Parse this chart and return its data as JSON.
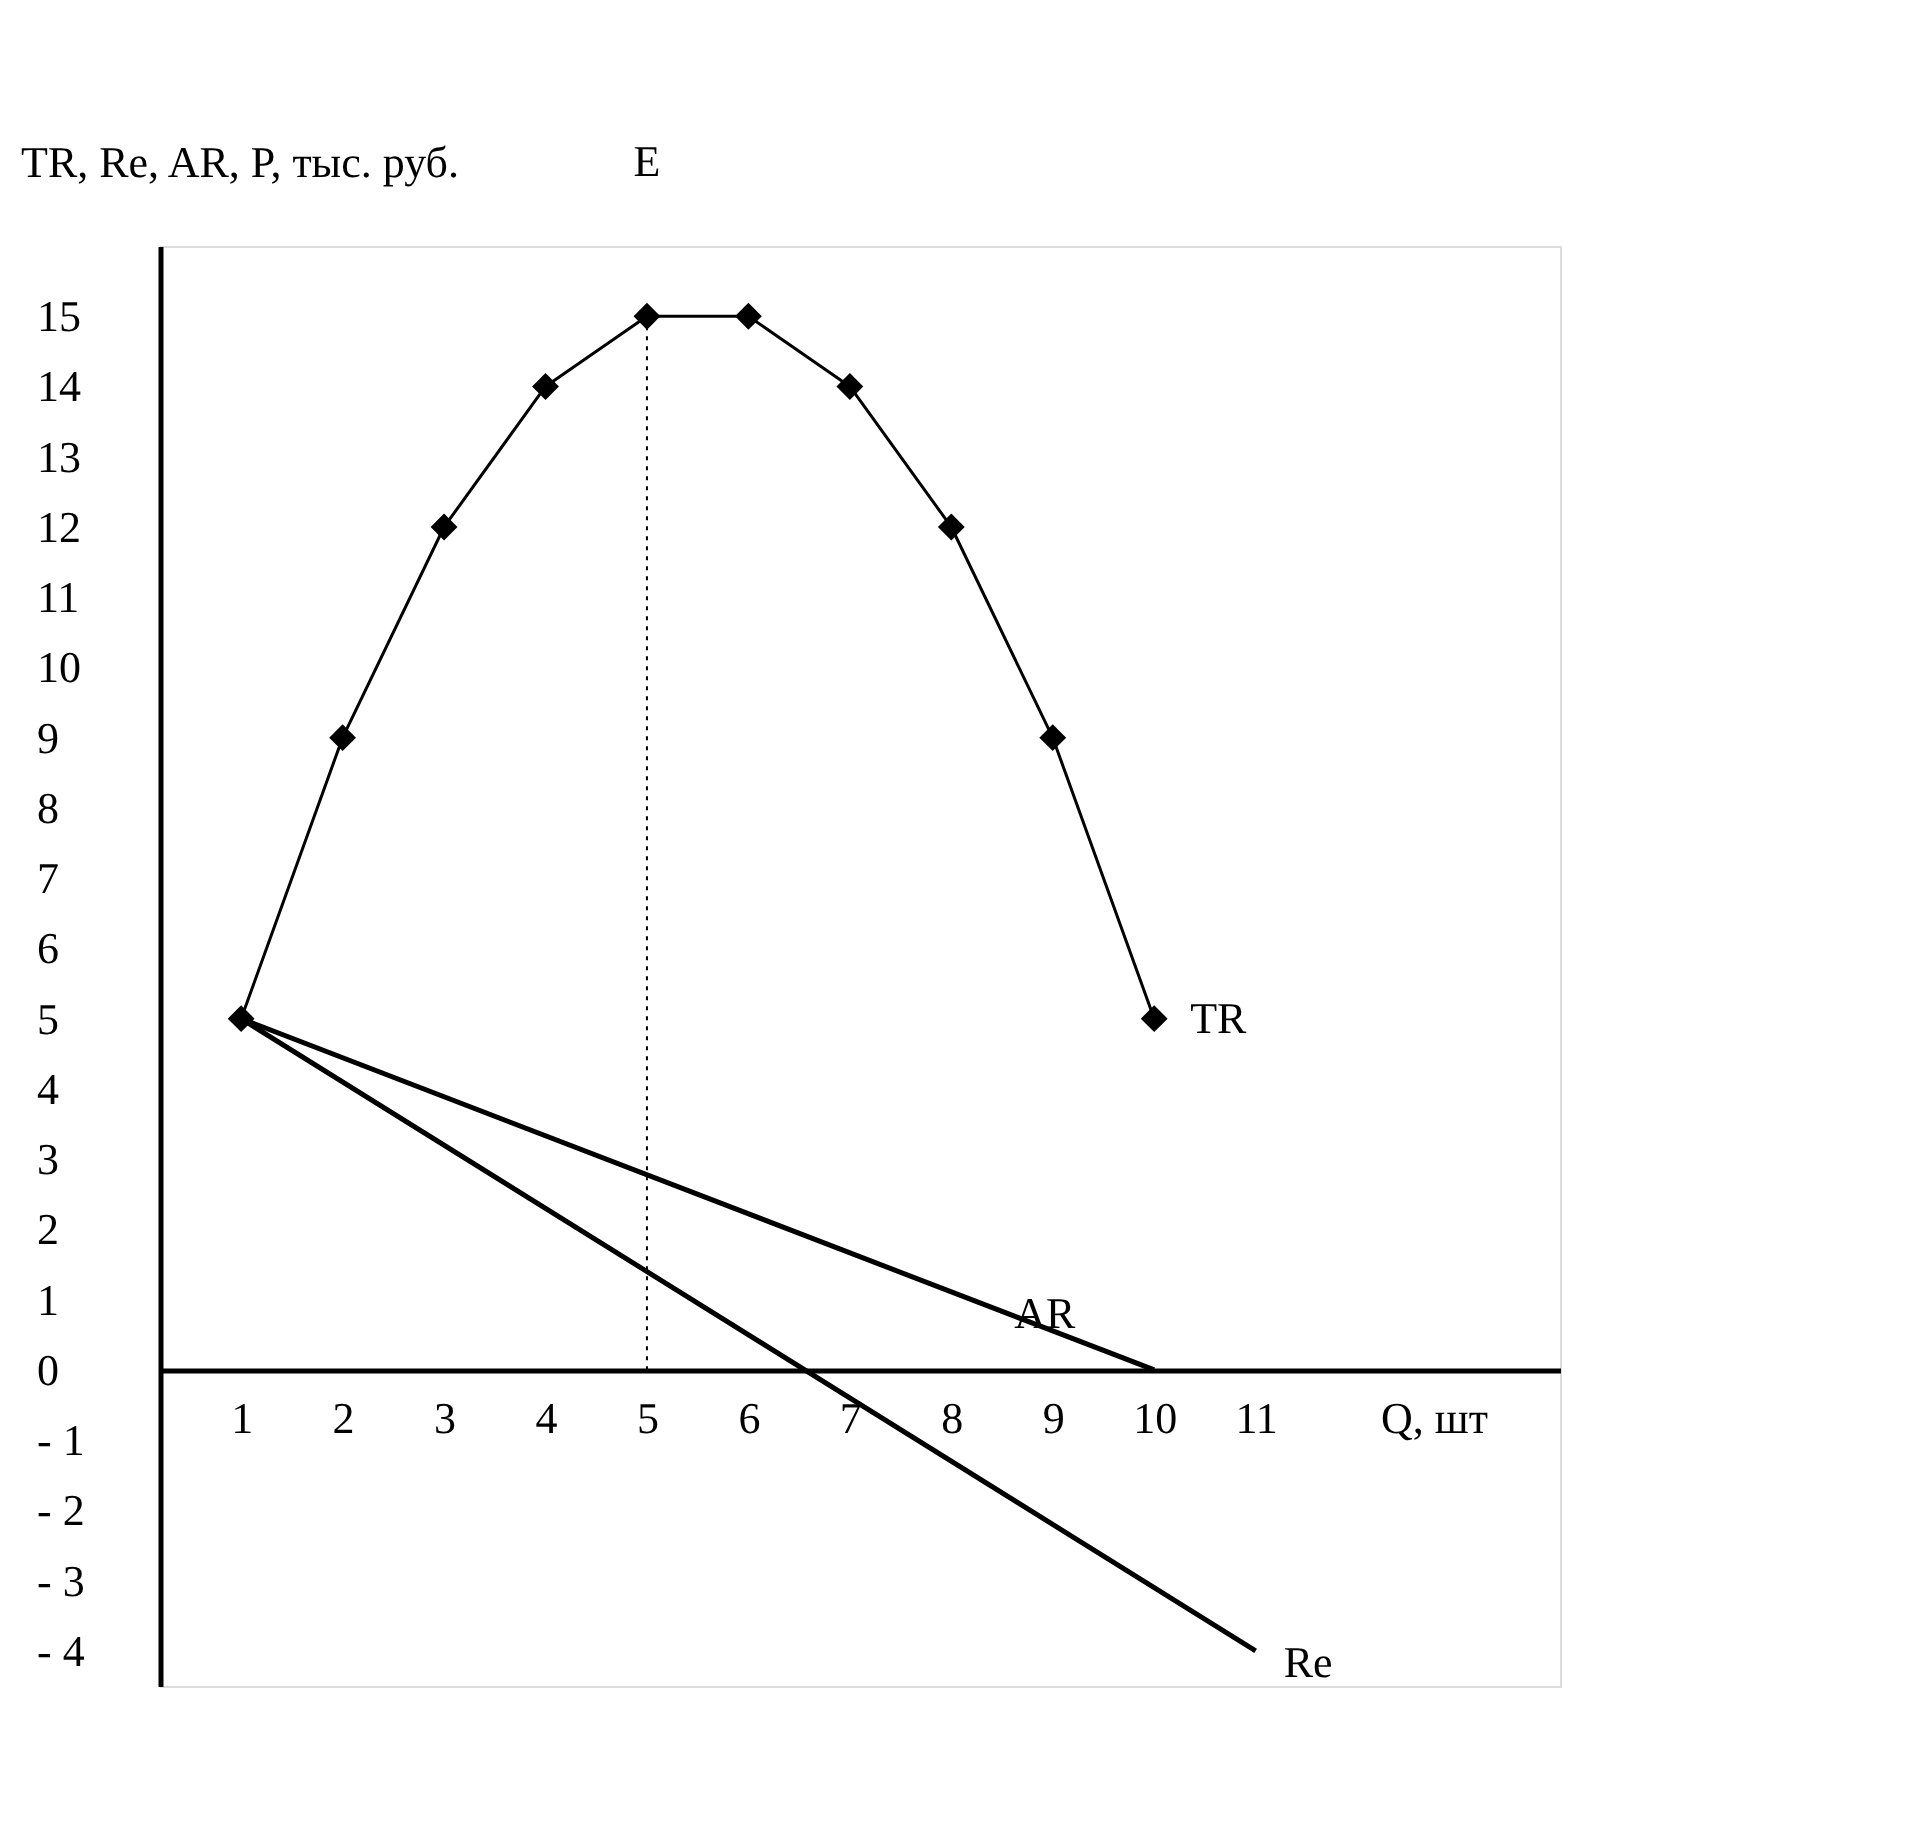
{
  "chart_data": {
    "type": "line",
    "xlabel": "Q, шт",
    "ylabel": "TR, Re, AR, P, тыс. руб.",
    "series": [
      {
        "name": "TR",
        "color": "#000000",
        "marker": "diamond",
        "x": [
          1,
          2,
          3,
          4,
          5,
          6,
          7,
          8,
          9,
          10
        ],
        "values": [
          5,
          9,
          12,
          14,
          15,
          15,
          14,
          12,
          9,
          5
        ]
      },
      {
        "name": "AR",
        "color": "#000000",
        "marker": "none",
        "x": [
          1,
          10
        ],
        "values": [
          5,
          0
        ]
      },
      {
        "name": "Re",
        "color": "#000000",
        "marker": "none",
        "x": [
          1,
          11
        ],
        "values": [
          5,
          -4
        ]
      }
    ],
    "xlim": [
      0.2,
      14
    ],
    "ylim": [
      -4.5,
      16
    ],
    "xticks": [
      1,
      2,
      3,
      4,
      5,
      6,
      7,
      8,
      9,
      10,
      11
    ],
    "yticks": [
      {
        "value": -4,
        "label": "- 4"
      },
      {
        "value": -3,
        "label": "- 3"
      },
      {
        "value": -2,
        "label": "- 2"
      },
      {
        "value": -1,
        "label": "- 1"
      },
      0,
      1,
      2,
      3,
      4,
      5,
      6,
      7,
      8,
      9,
      10,
      11,
      12,
      13,
      14,
      15
    ],
    "ref_lines": [
      {
        "axis": "x",
        "value": 5,
        "label": "E",
        "line_style": "dotted"
      }
    ],
    "grid": false
  }
}
